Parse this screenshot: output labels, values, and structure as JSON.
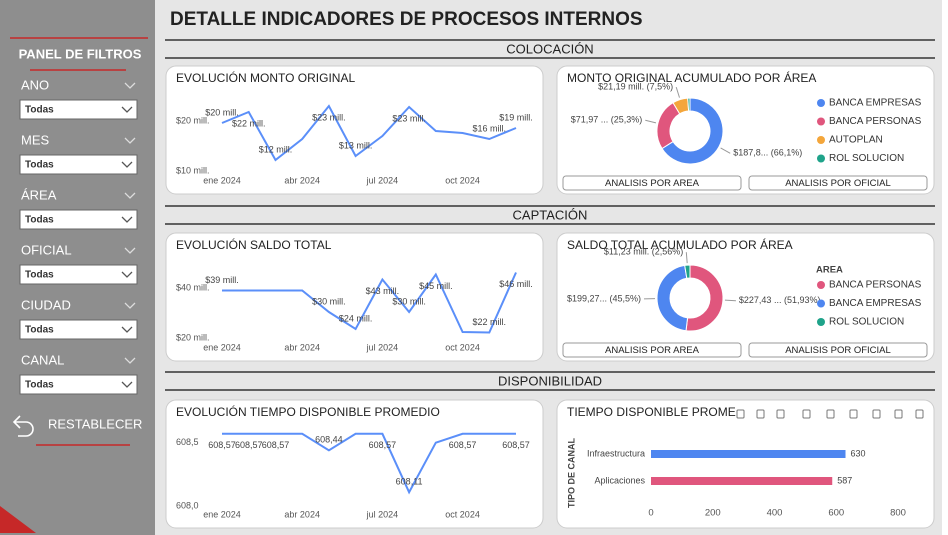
{
  "title": "DETALLE INDICADORES DE PROCESOS INTERNOS",
  "sidebar": {
    "title": "PANEL DE FILTROS",
    "filters": [
      {
        "label": "ANO",
        "value": "Todas"
      },
      {
        "label": "MES",
        "value": "Todas"
      },
      {
        "label": "ÁREA",
        "value": "Todas"
      },
      {
        "label": "OFICIAL",
        "value": "Todas"
      },
      {
        "label": "CIUDAD",
        "value": "Todas"
      },
      {
        "label": "CANAL",
        "value": "Todas"
      }
    ],
    "reset": "RESTABLECER"
  },
  "sections": [
    "COLOCACIÓN",
    "CAPTACIÓN",
    "DISPONIBILIDAD"
  ],
  "buttons": [
    [
      "ANALISIS POR AREA",
      "ANALISIS POR OFICIAL"
    ],
    [
      "ANALISIS POR AREA",
      "ANALISIS POR OFICIAL"
    ]
  ],
  "chart_data": [
    {
      "type": "line",
      "title": "EVOLUCIÓN MONTO ORIGINAL",
      "color": "#5b8ff9",
      "categories": [
        "ene 2024",
        null,
        null,
        "abr 2024",
        null,
        null,
        "jul 2024",
        null,
        null,
        "oct 2024",
        null,
        null
      ],
      "values": [
        19.6,
        21.8,
        12.2,
        16.4,
        23,
        13,
        17,
        22.8,
        18,
        17.6,
        16.4,
        18.6
      ],
      "value_labels": [
        "$20 mill.",
        "$22 mill.",
        "$12 mill.",
        null,
        "$23 mill.",
        "$13 mill.",
        null,
        "$23 mill.",
        null,
        null,
        "$16 mill.",
        "$19 mill."
      ],
      "ylim": [
        8,
        25
      ],
      "yticks": [
        {
          "value": 10,
          "label": "$10 mill."
        },
        {
          "value": 20,
          "label": "$20 mill."
        }
      ]
    },
    {
      "type": "pie",
      "title": "MONTO ORIGINAL ACUMULADO POR ÁREA",
      "categories": [
        "BANCA EMPRESAS",
        "BANCA PERSONAS",
        "AUTOPLAN",
        "ROL SOLUCION"
      ],
      "values": [
        66.1,
        25.3,
        7.5,
        1.1
      ],
      "value_labels": [
        "$187,8... (66,1%)",
        "$71,97 ... (25,3%)",
        "$21,19 mill. (7,5%)",
        null
      ],
      "colors": [
        "#4e86f0",
        "#e0567d",
        "#f4a63b",
        "#1fa38a"
      ]
    },
    {
      "type": "line",
      "title": "EVOLUCIÓN SALDO TOTAL",
      "color": "#5b8ff9",
      "categories": [
        "ene 2024",
        null,
        null,
        "abr 2024",
        null,
        null,
        "jul 2024",
        null,
        null,
        "oct 2024",
        null,
        null
      ],
      "values": [
        39,
        39,
        39,
        39,
        30.4,
        23.6,
        43.4,
        30.4,
        45.4,
        22.4,
        22.2,
        46.2
      ],
      "value_labels": [
        "$39 mill.",
        null,
        null,
        null,
        "$30 mill.",
        "$24 mill.",
        "$43 mill.",
        "$30 mill.",
        "$45 mill.",
        null,
        "$22 mill.",
        "$46 mill."
      ],
      "ylim": [
        16,
        50
      ],
      "yticks": [
        {
          "value": 20,
          "label": "$20 mill."
        },
        {
          "value": 40,
          "label": "$40 mill."
        }
      ]
    },
    {
      "type": "pie",
      "title": "SALDO TOTAL ACUMULADO POR ÁREA",
      "legend_title": "AREA",
      "categories": [
        "BANCA PERSONAS",
        "BANCA EMPRESAS",
        "ROL SOLUCION"
      ],
      "values": [
        51.93,
        45.5,
        2.56
      ],
      "value_labels": [
        "$227,43 ... (51,93%)",
        "$199,27... (45,5%)",
        "$11,23 mill. (2,56%)"
      ],
      "colors": [
        "#e0567d",
        "#4e86f0",
        "#1fa38a"
      ]
    },
    {
      "type": "line",
      "title": "EVOLUCIÓN TIEMPO DISPONIBLE PROMEDIO",
      "color": "#5b8ff9",
      "categories": [
        "ene 2024",
        null,
        null,
        "abr 2024",
        null,
        null,
        "jul 2024",
        null,
        null,
        "oct 2024",
        null,
        null
      ],
      "values": [
        608.57,
        608.57,
        608.57,
        608.57,
        608.44,
        608.57,
        608.57,
        608.11,
        608.5,
        608.57,
        608.57,
        608.57
      ],
      "value_labels": [
        "608,57",
        "608,57",
        "608,57",
        null,
        "608,44",
        null,
        "608,57",
        "608,11",
        null,
        "608,57",
        null,
        "608,57"
      ],
      "ylim": [
        607.93,
        608.6
      ],
      "yticks": [
        {
          "value": 608,
          "label": "608,0"
        },
        {
          "value": 608.5,
          "label": "608,5"
        }
      ]
    },
    {
      "type": "bar",
      "title": "TIEMPO DISPONIBLE PROME",
      "y_label": "TIPO DE CANAL",
      "categories": [
        "Infraestructura",
        "Aplicaciones"
      ],
      "values": [
        630,
        587
      ],
      "colors": [
        "#4e86f0",
        "#e0567d"
      ],
      "xlim": [
        0,
        800
      ],
      "xticks": [
        0,
        200,
        400,
        600,
        800
      ]
    }
  ]
}
